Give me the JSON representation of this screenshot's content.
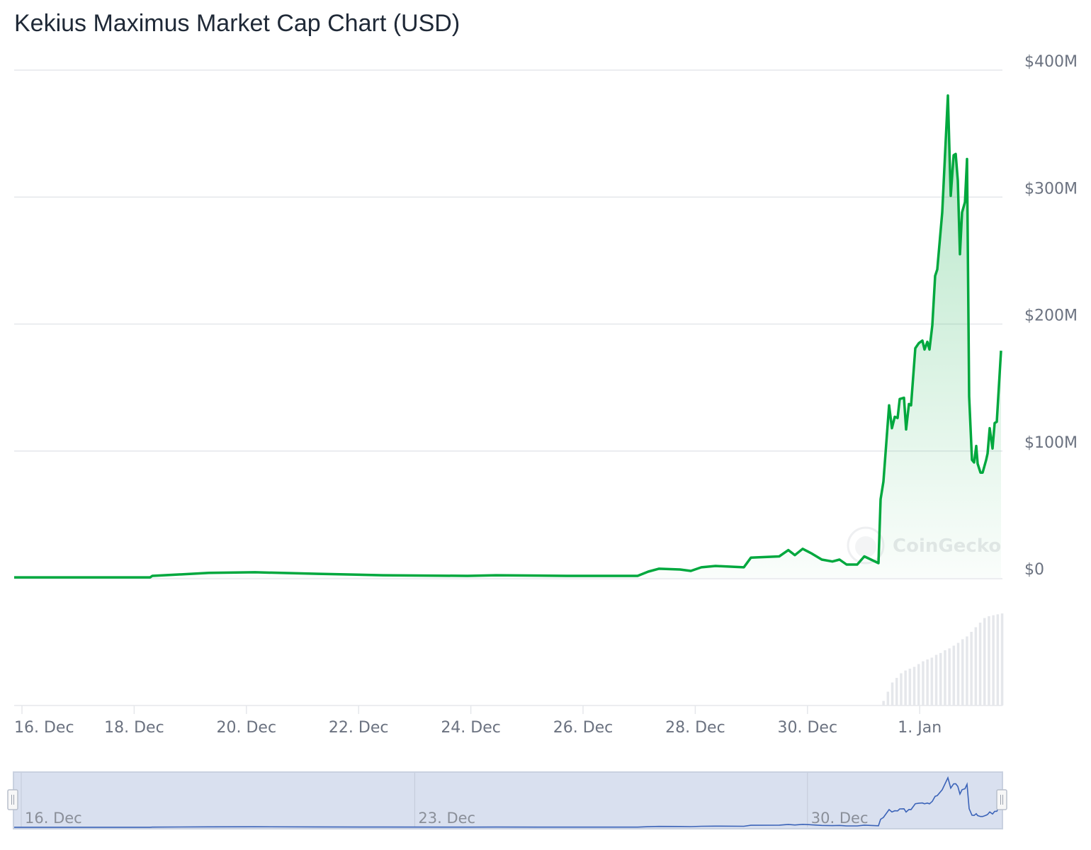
{
  "chart_data": {
    "type": "area",
    "title": "Kekius Maximus Market Cap Chart (USD)",
    "xlabel": "",
    "ylabel": "",
    "y_unit": "USD millions",
    "ylim": [
      0,
      400
    ],
    "y_ticks": [
      {
        "value": 0,
        "label": "$0"
      },
      {
        "value": 100,
        "label": "$100M"
      },
      {
        "value": 200,
        "label": "$200M"
      },
      {
        "value": 300,
        "label": "$300M"
      },
      {
        "value": 400,
        "label": "$400M"
      }
    ],
    "x_ticks": [
      {
        "date": "Dec 16 00:00",
        "label": "16. Dec"
      },
      {
        "date": "Dec 18 00:00",
        "label": "18. Dec"
      },
      {
        "date": "Dec 20 00:00",
        "label": "20. Dec"
      },
      {
        "date": "Dec 22 00:00",
        "label": "22. Dec"
      },
      {
        "date": "Dec 24 00:00",
        "label": "24. Dec"
      },
      {
        "date": "Dec 26 00:00",
        "label": "26. Dec"
      },
      {
        "date": "Dec 28 00:00",
        "label": "28. Dec"
      },
      {
        "date": "Dec 30 00:00",
        "label": "30. Dec"
      },
      {
        "date": "Jan 1 00:00",
        "label": "1. Jan"
      }
    ],
    "grid": true,
    "legend": "none",
    "line_color": "#00a83e",
    "watermark": "CoinGecko",
    "series": [
      {
        "points": [
          [
            "Dec 15 20:40",
            0.5
          ],
          [
            "Dec 18 06:50",
            0.5
          ],
          [
            "Dec 18 07:45",
            1.7
          ],
          [
            "Dec 19 08:00",
            4
          ],
          [
            "Dec 20 03:40",
            4.5
          ],
          [
            "Dec 21 07:00",
            3.3
          ],
          [
            "Dec 22 10:15",
            2.2
          ],
          [
            "Dec 23 22:36",
            1.7
          ],
          [
            "Dec 24 10:45",
            2.2
          ],
          [
            "Dec 25 17:00",
            1.7
          ],
          [
            "Dec 26 23:20",
            1.7
          ],
          [
            "Dec 27 03:53",
            5
          ],
          [
            "Dec 27 08:25",
            7.3
          ],
          [
            "Dec 27 17:30",
            6.7
          ],
          [
            "Dec 27 22:05",
            5.6
          ],
          [
            "Dec 28 02:37",
            8.4
          ],
          [
            "Dec 28 08:40",
            9.5
          ],
          [
            "Dec 28 20:47",
            8.4
          ],
          [
            "Dec 28 23:48",
            16
          ],
          [
            "Dec 29 11:55",
            17
          ],
          [
            "Dec 29 15:50",
            22
          ],
          [
            "Dec 29 18:36",
            18
          ],
          [
            "Dec 29 21:56",
            23
          ],
          [
            "Dec 30 01:35",
            19.5
          ],
          [
            "Dec 30 06:07",
            14.5
          ],
          [
            "Dec 30 10:40",
            13
          ],
          [
            "Dec 30 13:42",
            14.5
          ],
          [
            "Dec 30 16:43",
            10.6
          ],
          [
            "Dec 30 21:16",
            10.6
          ],
          [
            "Dec 31 00:18",
            17
          ],
          [
            "Dec 31 06:22",
            11.7
          ],
          [
            "Dec 31 07:16",
            62
          ],
          [
            "Dec 31 08:30",
            76
          ],
          [
            "Dec 31 10:55",
            136
          ],
          [
            "Dec 31 12:07",
            118
          ],
          [
            "Dec 31 13:20",
            127
          ],
          [
            "Dec 31 14:33",
            126
          ],
          [
            "Dec 31 15:27",
            141
          ],
          [
            "Dec 31 17:17",
            142
          ],
          [
            "Dec 31 18:11",
            117
          ],
          [
            "Dec 31 19:24",
            137
          ],
          [
            "Dec 31 20:18",
            136
          ],
          [
            "Dec 31 22:07",
            181
          ],
          [
            "Dec 31 23:38",
            185
          ],
          [
            "Jan 1 01:09",
            187
          ],
          [
            "Jan 1 02:04",
            180
          ],
          [
            "Jan 1 03:16",
            186
          ],
          [
            "Jan 1 04:11",
            180
          ],
          [
            "Jan 1 05:24",
            199
          ],
          [
            "Jan 1 06:36",
            238
          ],
          [
            "Jan 1 07:30",
            243
          ],
          [
            "Jan 1 09:38",
            288
          ],
          [
            "Jan 1 12:04",
            380
          ],
          [
            "Jan 1 13:16",
            301
          ],
          [
            "Jan 1 14:30",
            333
          ],
          [
            "Jan 1 15:23",
            334
          ],
          [
            "Jan 1 16:18",
            313
          ],
          [
            "Jan 1 17:12",
            255
          ],
          [
            "Jan 1 18:07",
            288
          ],
          [
            "Jan 1 19:21",
            296
          ],
          [
            "Jan 1 20:14",
            330
          ],
          [
            "Jan 1 21:09",
            143
          ],
          [
            "Jan 1 22:22",
            93
          ],
          [
            "Jan 1 23:17",
            91
          ],
          [
            "Jan 2 00:11",
            104
          ],
          [
            "Jan 2 00:48",
            90
          ],
          [
            "Jan 2 02:00",
            83
          ],
          [
            "Jan 2 02:54",
            83
          ],
          [
            "Jan 2 04:25",
            93
          ],
          [
            "Jan 2 05:02",
            98
          ],
          [
            "Jan 2 05:56",
            118
          ],
          [
            "Jan 2 07:09",
            102
          ],
          [
            "Jan 2 08:04",
            122
          ],
          [
            "Jan 2 08:58",
            123
          ],
          [
            "Jan 2 10:47",
            179
          ]
        ]
      }
    ],
    "volume": {
      "color": "#e5e7eb",
      "start": "Dec 31 08:00",
      "relative_values": [
        0.05,
        0.15,
        0.25,
        0.3,
        0.35,
        0.38,
        0.4,
        0.42,
        0.45,
        0.48,
        0.5,
        0.52,
        0.55,
        0.57,
        0.6,
        0.62,
        0.65,
        0.68,
        0.72,
        0.75,
        0.8,
        0.85,
        0.9,
        0.95,
        0.97,
        0.98,
        0.99,
        1.0
      ]
    },
    "navigator": {
      "x_ticks": [
        {
          "date": "Dec 16 00:00",
          "label": "16. Dec"
        },
        {
          "date": "Dec 23 00:00",
          "label": "23. Dec"
        },
        {
          "date": "Dec 30 00:00",
          "label": "30. Dec"
        }
      ],
      "line_color": "#3b63b8",
      "mask_color": "#d9e0ef"
    }
  }
}
